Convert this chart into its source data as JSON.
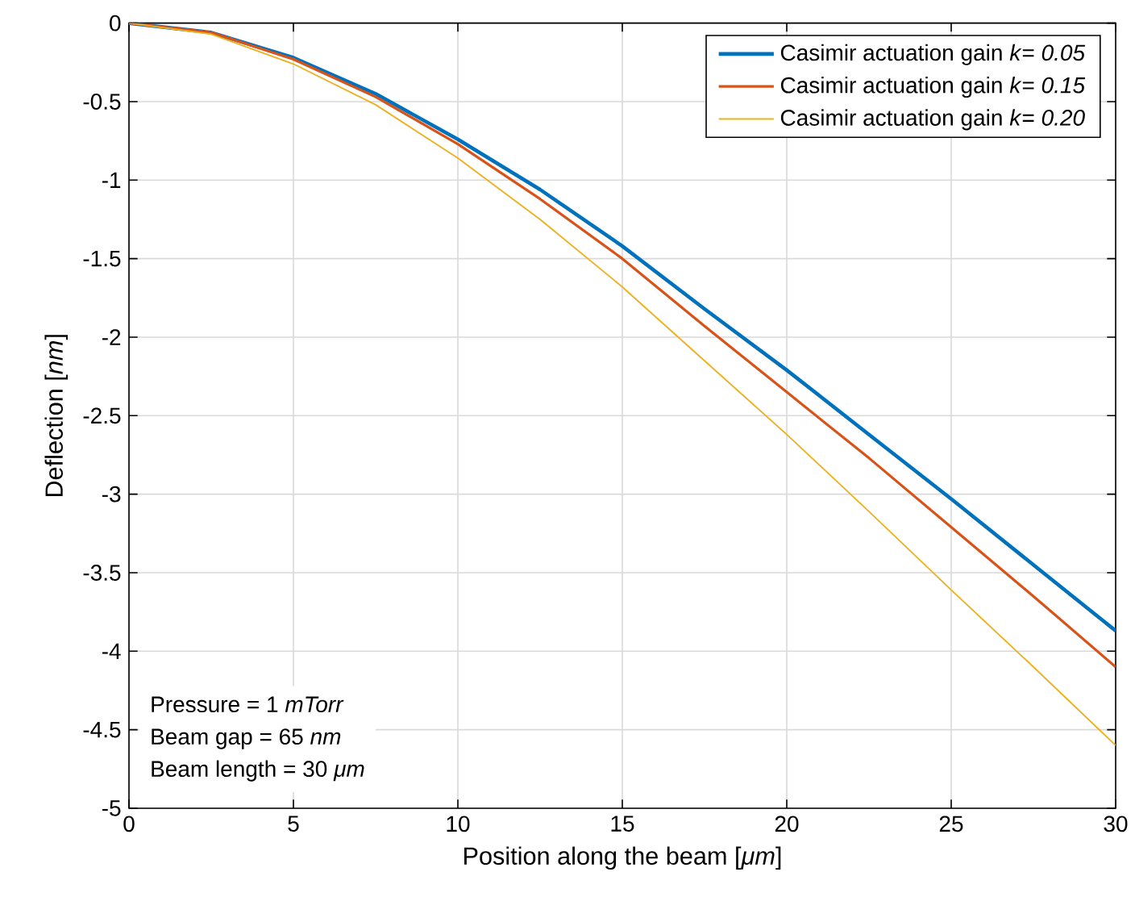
{
  "chart_data": {
    "type": "line",
    "xlabel": "Position along the beam [*μm*]",
    "ylabel": "Deflection [*nm*]",
    "x": [
      0,
      2.5,
      5,
      7.5,
      10,
      12.5,
      15,
      17.5,
      20,
      22.5,
      25,
      27.5,
      30
    ],
    "series": [
      {
        "name": "Casimir actuation gain *k*= *0.05*",
        "color": "#0072bd",
        "values": [
          0,
          -0.06,
          -0.22,
          -0.45,
          -0.74,
          -1.06,
          -1.42,
          -1.82,
          -2.21,
          -2.62,
          -3.03,
          -3.45,
          -3.87
        ]
      },
      {
        "name": "Casimir actuation gain *k*= *0.15*",
        "color": "#d95319",
        "values": [
          0,
          -0.06,
          -0.23,
          -0.47,
          -0.77,
          -1.12,
          -1.5,
          -1.93,
          -2.35,
          -2.77,
          -3.21,
          -3.65,
          -4.1
        ]
      },
      {
        "name": "Casimir actuation gain *k*= *0.20*",
        "color": "#edb120",
        "values": [
          0,
          -0.07,
          -0.26,
          -0.52,
          -0.86,
          -1.25,
          -1.68,
          -2.15,
          -2.62,
          -3.11,
          -3.61,
          -4.1,
          -4.6
        ]
      }
    ],
    "xlim": [
      0,
      30
    ],
    "ylim": [
      -5,
      0
    ],
    "xticks": [
      0,
      5,
      10,
      15,
      20,
      25,
      30
    ],
    "yticks": [
      -5,
      -4.5,
      -4,
      -3.5,
      -3,
      -2.5,
      -2,
      -1.5,
      -1,
      -0.5,
      0
    ],
    "grid": true,
    "legend": "top right",
    "marker": "none",
    "line_style": "solid",
    "annotations": [
      "Pressure = 1 *mTorr*",
      "Beam gap = 65 *nm*",
      "Beam length = 30 *μm*"
    ]
  }
}
